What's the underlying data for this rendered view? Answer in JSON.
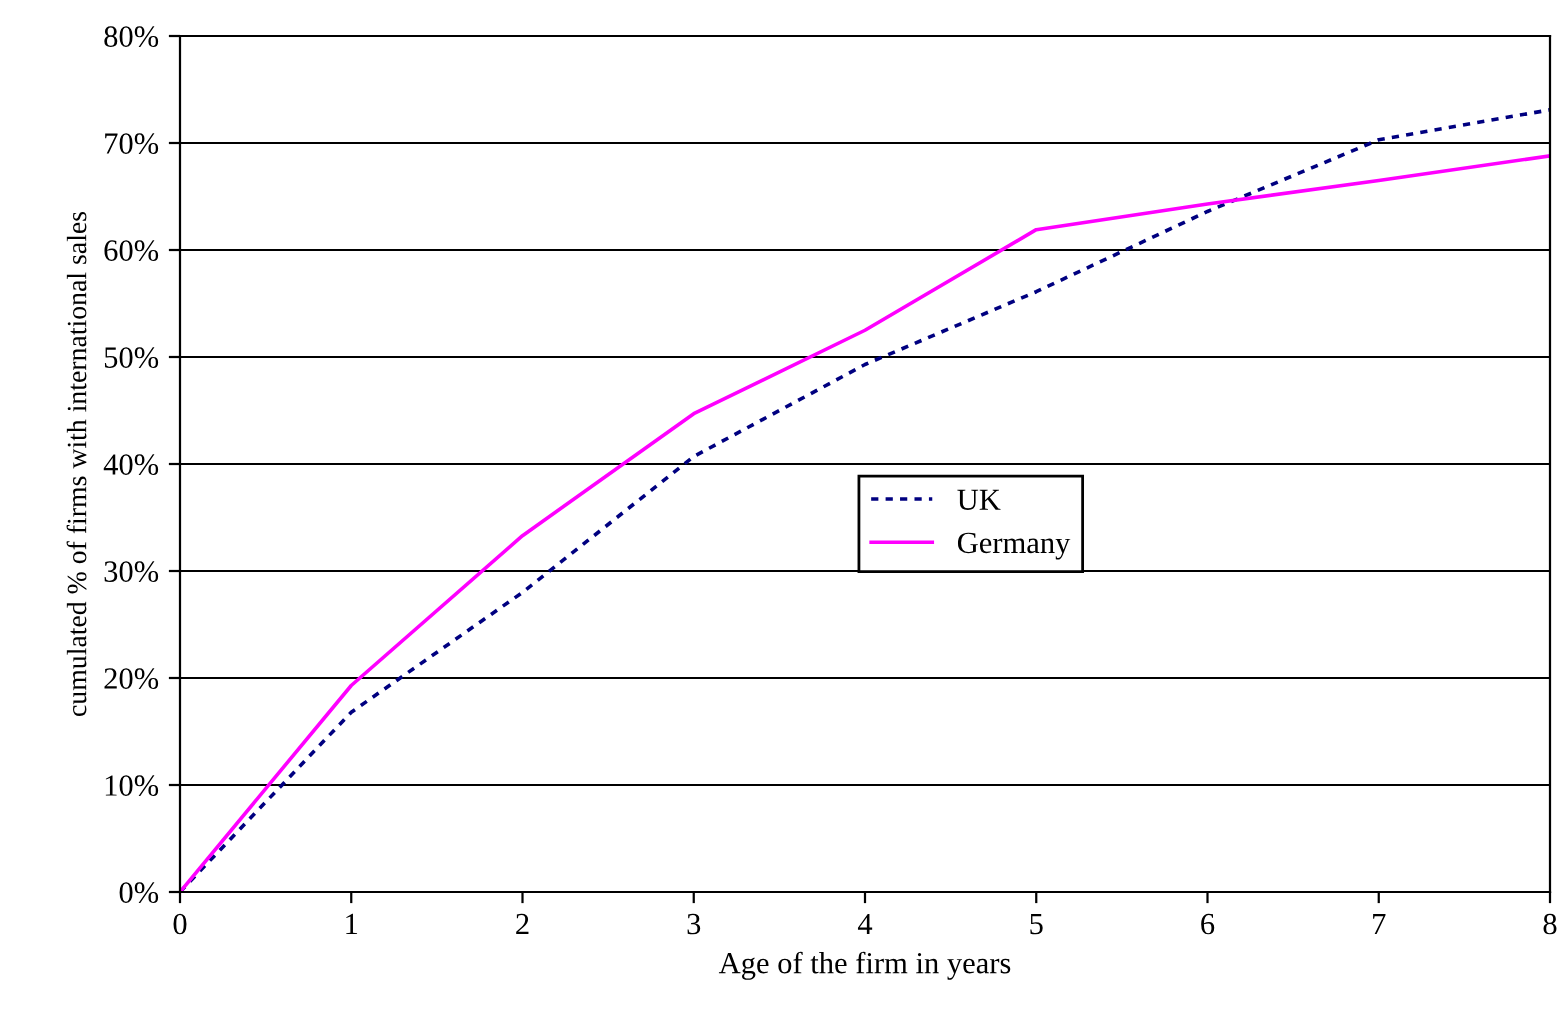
{
  "chart_data": {
    "type": "line",
    "xlabel": "Age of the firm in years",
    "ylabel": "cumulated % of firms with international sales",
    "x": [
      0,
      1,
      2,
      3,
      4,
      5,
      6,
      7,
      8
    ],
    "series": [
      {
        "name": "UK",
        "color": "#000080",
        "line_style": "dotted",
        "values": [
          0,
          16.8,
          28.0,
          40.7,
          49.3,
          56.1,
          63.6,
          70.3,
          73.1
        ]
      },
      {
        "name": "Germany",
        "color": "#ff00ff",
        "line_style": "solid",
        "values": [
          0,
          19.3,
          33.3,
          44.7,
          52.5,
          61.9,
          64.3,
          66.5,
          68.8
        ]
      }
    ],
    "xlim": [
      0,
      8
    ],
    "xticks": [
      0,
      1,
      2,
      3,
      4,
      5,
      6,
      7,
      8
    ],
    "ylim": [
      0,
      80
    ],
    "yticks": [
      {
        "value": 0,
        "label": "0%"
      },
      {
        "value": 10,
        "label": "10%"
      },
      {
        "value": 20,
        "label": "20%"
      },
      {
        "value": 30,
        "label": "30%"
      },
      {
        "value": 40,
        "label": "40%"
      },
      {
        "value": 50,
        "label": "50%"
      },
      {
        "value": 60,
        "label": "60%"
      },
      {
        "value": 70,
        "label": "70%"
      },
      {
        "value": 80,
        "label": "80%"
      }
    ],
    "grid": "y",
    "legend": "right",
    "marker": "none"
  }
}
